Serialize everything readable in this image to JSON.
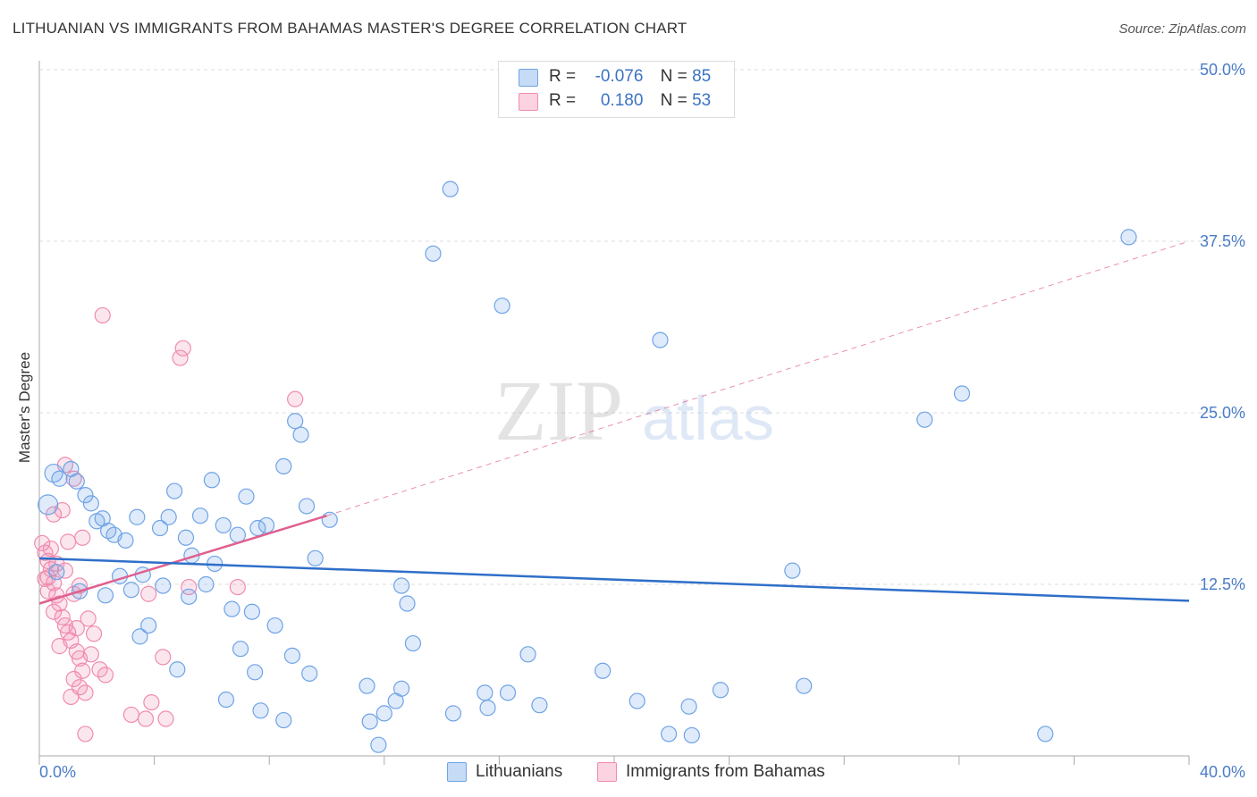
{
  "title": "LITHUANIAN VS IMMIGRANTS FROM BAHAMAS MASTER'S DEGREE CORRELATION CHART",
  "source": "Source: ZipAtlas.com",
  "legend": {
    "series1": {
      "r_label": "R =",
      "r_value": "-0.076",
      "n_label": "N =",
      "n_value": "85"
    },
    "series2": {
      "r_label": "R =",
      "r_value": "0.180",
      "n_label": "N =",
      "n_value": "53"
    }
  },
  "bottom_legend": {
    "series1": "Lithuanians",
    "series2": "Immigrants from Bahamas"
  },
  "watermark": {
    "part1": "ZIP",
    "part2": "atlas"
  },
  "chart_data": {
    "type": "scatter",
    "title": "LITHUANIAN VS IMMIGRANTS FROM BAHAMAS MASTER'S DEGREE CORRELATION CHART",
    "xlabel": "",
    "ylabel": "Master's Degree",
    "xlim": [
      0,
      40
    ],
    "ylim": [
      0,
      50
    ],
    "x_tick_labels": [
      "0.0%",
      "40.0%"
    ],
    "y_ticks": [
      12.5,
      25.0,
      37.5,
      50.0
    ],
    "y_tick_labels": [
      "12.5%",
      "25.0%",
      "37.5%",
      "50.0%"
    ],
    "grid": true,
    "colors": {
      "series1": "#6fa3e6",
      "series2": "#f08bb0",
      "trend1": "#2f6fc9",
      "trend2": "#e0608f"
    },
    "series": [
      {
        "name": "Lithuanians",
        "r": -0.076,
        "n": 85,
        "trend": {
          "x": [
            0,
            40
          ],
          "y": [
            14.4,
            11.3
          ]
        },
        "points": [
          [
            0.3,
            18.3
          ],
          [
            0.5,
            20.6
          ],
          [
            0.7,
            20.2
          ],
          [
            1.1,
            20.9
          ],
          [
            1.3,
            20.0
          ],
          [
            1.6,
            19.0
          ],
          [
            1.8,
            18.4
          ],
          [
            2.0,
            17.1
          ],
          [
            2.2,
            17.3
          ],
          [
            2.4,
            16.4
          ],
          [
            2.6,
            16.1
          ],
          [
            3.0,
            15.7
          ],
          [
            3.4,
            17.4
          ],
          [
            2.8,
            13.1
          ],
          [
            3.2,
            12.1
          ],
          [
            3.6,
            13.2
          ],
          [
            3.8,
            9.5
          ],
          [
            4.2,
            16.6
          ],
          [
            4.5,
            17.4
          ],
          [
            4.7,
            19.3
          ],
          [
            5.1,
            15.9
          ],
          [
            5.3,
            14.6
          ],
          [
            5.6,
            17.5
          ],
          [
            5.8,
            12.5
          ],
          [
            6.0,
            20.1
          ],
          [
            6.1,
            14.0
          ],
          [
            6.4,
            16.8
          ],
          [
            6.7,
            10.7
          ],
          [
            6.9,
            16.1
          ],
          [
            7.2,
            18.9
          ],
          [
            7.4,
            10.5
          ],
          [
            7.6,
            16.6
          ],
          [
            7.9,
            16.8
          ],
          [
            8.2,
            9.5
          ],
          [
            8.5,
            21.1
          ],
          [
            8.9,
            24.4
          ],
          [
            9.1,
            23.4
          ],
          [
            9.3,
            18.2
          ],
          [
            9.6,
            14.4
          ],
          [
            10.1,
            17.2
          ],
          [
            14.3,
            41.3
          ],
          [
            13.7,
            36.6
          ],
          [
            16.1,
            32.8
          ],
          [
            21.6,
            30.3
          ],
          [
            32.1,
            26.4
          ],
          [
            30.8,
            24.5
          ],
          [
            37.9,
            37.8
          ],
          [
            26.2,
            13.5
          ],
          [
            12.6,
            12.4
          ],
          [
            12.8,
            11.1
          ],
          [
            13.0,
            8.2
          ],
          [
            9.4,
            6.0
          ],
          [
            11.4,
            5.1
          ],
          [
            11.5,
            2.5
          ],
          [
            11.8,
            0.8
          ],
          [
            12.0,
            3.1
          ],
          [
            12.4,
            4.0
          ],
          [
            12.6,
            4.9
          ],
          [
            14.4,
            3.1
          ],
          [
            15.5,
            4.6
          ],
          [
            15.6,
            3.5
          ],
          [
            16.3,
            4.6
          ],
          [
            17.0,
            7.4
          ],
          [
            17.4,
            3.7
          ],
          [
            19.6,
            6.2
          ],
          [
            20.8,
            4.0
          ],
          [
            21.9,
            1.6
          ],
          [
            22.6,
            3.6
          ],
          [
            22.7,
            1.5
          ],
          [
            23.7,
            4.8
          ],
          [
            26.6,
            5.1
          ],
          [
            35.0,
            1.6
          ],
          [
            4.8,
            6.3
          ],
          [
            4.3,
            12.4
          ],
          [
            6.5,
            4.1
          ],
          [
            7.0,
            7.8
          ],
          [
            7.5,
            6.1
          ],
          [
            7.7,
            3.3
          ],
          [
            8.5,
            2.6
          ],
          [
            8.8,
            7.3
          ],
          [
            0.6,
            13.4
          ],
          [
            1.4,
            12.0
          ],
          [
            2.3,
            11.7
          ],
          [
            3.5,
            8.7
          ],
          [
            5.2,
            11.6
          ]
        ]
      },
      {
        "name": "Immigrants from Bahamas",
        "r": 0.18,
        "n": 53,
        "trend": {
          "x": [
            0,
            10.0
          ],
          "y": [
            11.1,
            17.5
          ],
          "dashed_x": [
            10.0,
            40
          ],
          "dashed_y": [
            17.5,
            37.5
          ]
        },
        "points": [
          [
            0.1,
            15.5
          ],
          [
            0.2,
            14.8
          ],
          [
            0.3,
            14.2
          ],
          [
            0.4,
            13.6
          ],
          [
            0.2,
            12.9
          ],
          [
            0.5,
            12.6
          ],
          [
            0.3,
            12.0
          ],
          [
            0.6,
            11.7
          ],
          [
            0.7,
            11.1
          ],
          [
            0.5,
            10.5
          ],
          [
            0.8,
            10.1
          ],
          [
            0.9,
            9.5
          ],
          [
            1.0,
            9.0
          ],
          [
            1.1,
            8.4
          ],
          [
            0.7,
            8.0
          ],
          [
            1.3,
            7.6
          ],
          [
            1.4,
            7.1
          ],
          [
            1.5,
            6.2
          ],
          [
            1.2,
            5.6
          ],
          [
            1.4,
            5.0
          ],
          [
            1.6,
            4.6
          ],
          [
            1.1,
            4.3
          ],
          [
            0.5,
            17.6
          ],
          [
            0.8,
            17.9
          ],
          [
            1.0,
            15.6
          ],
          [
            1.5,
            15.9
          ],
          [
            1.7,
            10.0
          ],
          [
            1.9,
            8.9
          ],
          [
            2.1,
            6.3
          ],
          [
            2.3,
            5.9
          ],
          [
            2.2,
            32.1
          ],
          [
            4.9,
            29.0
          ],
          [
            5.0,
            29.7
          ],
          [
            8.9,
            26.0
          ],
          [
            0.9,
            21.2
          ],
          [
            1.2,
            20.2
          ],
          [
            4.3,
            7.2
          ],
          [
            5.2,
            12.3
          ],
          [
            3.9,
            3.9
          ],
          [
            3.2,
            3.0
          ],
          [
            3.7,
            2.7
          ],
          [
            4.4,
            2.7
          ],
          [
            1.6,
            1.6
          ],
          [
            6.9,
            12.3
          ],
          [
            3.8,
            11.8
          ],
          [
            0.4,
            15.1
          ],
          [
            0.6,
            14.0
          ],
          [
            1.2,
            11.8
          ],
          [
            0.9,
            13.5
          ],
          [
            1.3,
            9.3
          ],
          [
            1.8,
            7.4
          ],
          [
            0.3,
            13.0
          ],
          [
            1.4,
            12.4
          ]
        ]
      }
    ]
  }
}
